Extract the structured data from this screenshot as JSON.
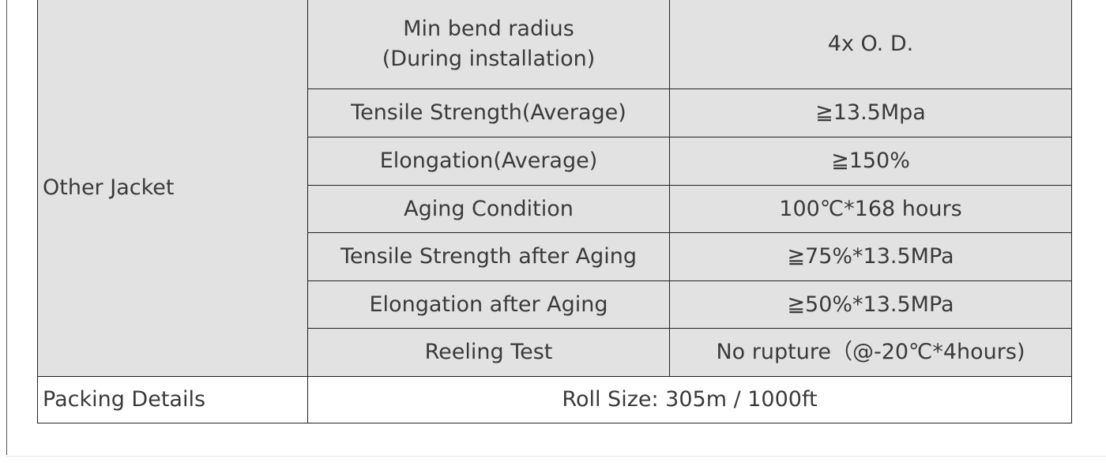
{
  "table": {
    "group_label": "Other Jacket",
    "properties": [
      {
        "name": [
          "Min bend radius",
          "(During installation)"
        ],
        "value": "4x O. D."
      },
      {
        "name": [
          "Tensile Strength(Average)"
        ],
        "value": "≧13.5Mpa"
      },
      {
        "name": [
          "Elongation(Average)"
        ],
        "value": "≧150%"
      },
      {
        "name": [
          "Aging Condition"
        ],
        "value": "100℃*168 hours"
      },
      {
        "name": [
          "Tensile Strength after Aging"
        ],
        "value": "≧75%*13.5MPa"
      },
      {
        "name": [
          "Elongation after Aging"
        ],
        "value": "≧50%*13.5MPa"
      },
      {
        "name": [
          "Reeling Test"
        ],
        "value": "No rupture（@-20℃*4hours)"
      }
    ],
    "packing": {
      "label": "Packing Details",
      "value": "Roll Size: 305m / 1000ft"
    }
  }
}
